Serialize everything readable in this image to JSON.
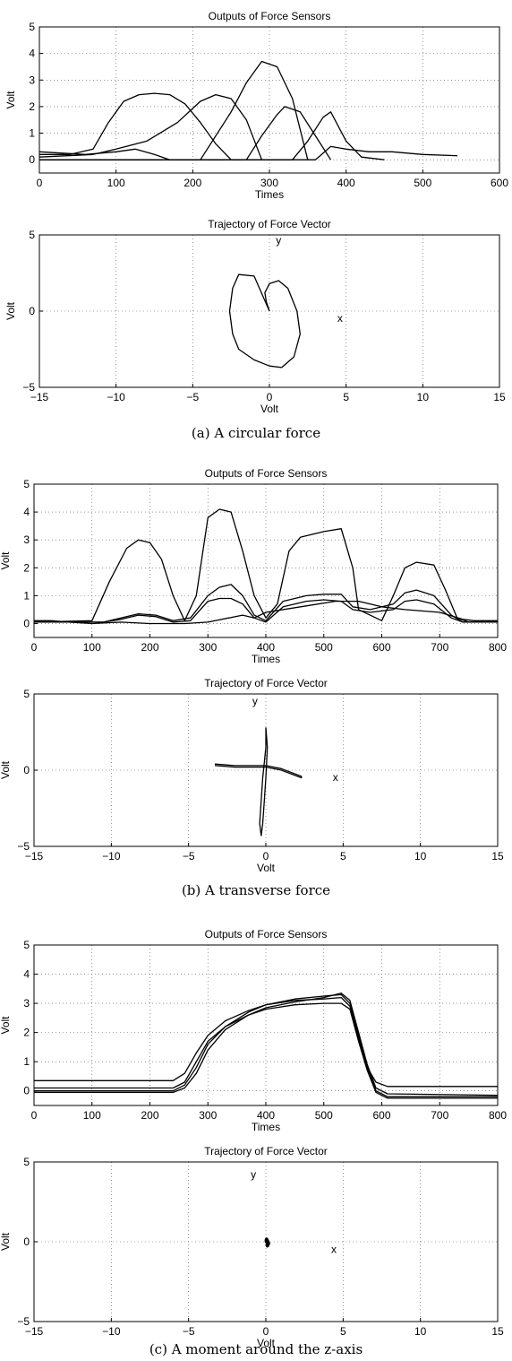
{
  "captions": [
    "(a) A circular force",
    "(b) A transverse force",
    "(c) A moment around the z-axis"
  ],
  "chart_data": [
    {
      "type": "line",
      "title": "Outputs of Force Sensors",
      "xlabel": "Times",
      "ylabel": "Volt",
      "xlim": [
        0,
        600
      ],
      "ylim": [
        -0.5,
        5
      ],
      "xticks": [
        0,
        100,
        200,
        300,
        400,
        500,
        600
      ],
      "yticks": [
        0,
        1,
        2,
        3,
        4,
        5
      ],
      "grid": true,
      "series": [
        {
          "x": [
            0,
            40,
            70,
            90,
            110,
            130,
            150,
            170,
            190,
            210,
            230,
            250
          ],
          "y": [
            0.2,
            0.2,
            0.4,
            1.4,
            2.2,
            2.45,
            2.5,
            2.45,
            2.1,
            1.4,
            0.6,
            0
          ]
        },
        {
          "x": [
            0,
            70,
            100,
            140,
            180,
            210,
            230,
            250,
            270,
            290
          ],
          "y": [
            0.1,
            0.2,
            0.4,
            0.7,
            1.4,
            2.2,
            2.45,
            2.3,
            1.5,
            0
          ]
        },
        {
          "x": [
            0,
            60,
            100,
            125,
            150,
            170,
            210,
            250,
            270,
            290,
            310,
            330,
            350
          ],
          "y": [
            0.3,
            0.2,
            0.3,
            0.4,
            0.2,
            0,
            0,
            1.8,
            2.9,
            3.7,
            3.5,
            2.3,
            0
          ]
        },
        {
          "x": [
            0,
            270,
            290,
            310,
            320,
            340,
            360,
            380
          ],
          "y": [
            0,
            0,
            0.9,
            1.7,
            2.0,
            1.8,
            0.9,
            0
          ]
        },
        {
          "x": [
            0,
            330,
            350,
            370,
            380,
            400,
            420,
            450
          ],
          "y": [
            0,
            0,
            0.7,
            1.6,
            1.8,
            0.7,
            0.1,
            0
          ]
        },
        {
          "x": [
            0,
            360,
            380,
            400,
            430,
            460,
            500,
            545
          ],
          "y": [
            0,
            0,
            0.5,
            0.4,
            0.3,
            0.3,
            0.2,
            0.15
          ]
        }
      ]
    },
    {
      "type": "line",
      "title": "Trajectory of Force Vector",
      "xlabel": "Volt",
      "ylabel": "Volt",
      "xlim": [
        -15,
        15
      ],
      "ylim": [
        -5,
        5
      ],
      "xticks": [
        -15,
        -10,
        -5,
        0,
        5,
        10,
        15
      ],
      "yticks": [
        -5,
        0,
        5
      ],
      "grid": true,
      "annotations": [
        {
          "text": "y",
          "x": 0.6,
          "y": 4.4
        },
        {
          "text": "x",
          "x": 4.6,
          "y": -0.7
        }
      ],
      "series": [
        {
          "x": [
            0,
            -1,
            -2,
            -2.4,
            -2.6,
            -2.4,
            -2,
            -1,
            0,
            0.8,
            1.6,
            2,
            1.8,
            1.2,
            0.6,
            0,
            -0.3,
            -0.2,
            0
          ],
          "y": [
            0,
            2.3,
            2.4,
            1.5,
            0,
            -1.5,
            -2.5,
            -3.2,
            -3.6,
            -3.7,
            -3,
            -1.5,
            0,
            1.5,
            2,
            1.8,
            1.2,
            0.6,
            0
          ]
        }
      ]
    },
    {
      "type": "line",
      "title": "Outputs of Force Sensors",
      "xlabel": "Times",
      "ylabel": "Volt",
      "xlim": [
        0,
        800
      ],
      "ylim": [
        -0.5,
        5
      ],
      "xticks": [
        0,
        100,
        200,
        300,
        400,
        500,
        600,
        700,
        800
      ],
      "yticks": [
        0,
        1,
        2,
        3,
        4,
        5
      ],
      "grid": true,
      "series": [
        {
          "x": [
            0,
            100,
            130,
            160,
            180,
            200,
            220,
            240,
            260,
            280,
            300,
            320,
            340,
            360,
            380,
            400,
            420,
            440,
            460,
            500,
            530,
            550,
            560,
            600,
            620,
            640,
            660,
            690,
            710,
            730,
            750,
            800
          ],
          "y": [
            0.05,
            0.1,
            1.5,
            2.7,
            3.0,
            2.9,
            2.3,
            1.0,
            0.1,
            1.0,
            3.8,
            4.1,
            4.0,
            2.6,
            1.0,
            0.2,
            0.7,
            2.6,
            3.1,
            3.3,
            3.4,
            2.0,
            0.5,
            0.1,
            1.0,
            2.0,
            2.2,
            2.1,
            1.2,
            0.2,
            0.05,
            0.05
          ]
        },
        {
          "x": [
            0,
            120,
            150,
            180,
            210,
            240,
            270,
            300,
            320,
            340,
            360,
            380,
            400,
            430,
            470,
            500,
            530,
            550,
            580,
            620,
            640,
            660,
            690,
            720,
            740,
            800
          ],
          "y": [
            0.05,
            0.05,
            0.2,
            0.35,
            0.3,
            0.1,
            0.2,
            1.0,
            1.3,
            1.4,
            1.0,
            0.3,
            0.1,
            0.8,
            1.0,
            1.05,
            1.05,
            0.6,
            0.5,
            0.7,
            1.1,
            1.2,
            1.0,
            0.3,
            0.05,
            0.05
          ]
        },
        {
          "x": [
            0,
            120,
            150,
            180,
            210,
            240,
            270,
            300,
            320,
            340,
            360,
            380,
            400,
            430,
            470,
            500,
            530,
            550,
            580,
            620,
            640,
            660,
            690,
            720,
            740,
            800
          ],
          "y": [
            0.05,
            0.05,
            0.15,
            0.3,
            0.25,
            0.05,
            0.1,
            0.8,
            0.9,
            0.9,
            0.7,
            0.2,
            0.05,
            0.6,
            0.8,
            0.85,
            0.8,
            0.5,
            0.4,
            0.5,
            0.8,
            0.85,
            0.7,
            0.2,
            0.05,
            0.05
          ]
        },
        {
          "x": [
            0,
            30,
            60,
            100,
            150,
            200,
            260,
            300,
            360,
            380,
            400,
            460,
            520,
            560,
            600,
            640,
            700,
            740,
            760,
            800
          ],
          "y": [
            0.1,
            0.1,
            0.05,
            0,
            0.05,
            0,
            0,
            0.05,
            0.3,
            0.2,
            0.4,
            0.6,
            0.8,
            0.8,
            0.6,
            0.5,
            0.4,
            0.15,
            0.1,
            0.1
          ]
        }
      ]
    },
    {
      "type": "line",
      "title": "Trajectory of Force Vector",
      "xlabel": "Volt",
      "ylabel": "Volt",
      "xlim": [
        -15,
        15
      ],
      "ylim": [
        -5,
        5
      ],
      "xticks": [
        -15,
        -10,
        -5,
        0,
        5,
        10,
        15
      ],
      "yticks": [
        -5,
        0,
        5
      ],
      "grid": true,
      "annotations": [
        {
          "text": "y",
          "x": -0.7,
          "y": 4.3
        },
        {
          "text": "x",
          "x": 4.5,
          "y": -0.7
        }
      ],
      "series": [
        {
          "x": [
            -3.3,
            -2,
            -1,
            0,
            1,
            2.3,
            2.3,
            1,
            0,
            -1,
            -2,
            -3.3
          ],
          "y": [
            0.3,
            0.2,
            0.2,
            0.2,
            0,
            -0.5,
            -0.4,
            0.1,
            0.3,
            0.3,
            0.3,
            0.4
          ]
        },
        {
          "x": [
            0,
            0,
            -0.1,
            -0.2,
            -0.3,
            -0.4,
            -0.3,
            -0.2,
            -0.1,
            0,
            0.1,
            0
          ],
          "y": [
            2.8,
            1.5,
            0.5,
            -0.5,
            -2,
            -3.5,
            -4.3,
            -3.5,
            -2,
            -0.5,
            1.5,
            2.8
          ]
        }
      ]
    },
    {
      "type": "line",
      "title": "Outputs of Force Sensors",
      "xlabel": "Times",
      "ylabel": "Volt",
      "xlim": [
        0,
        800
      ],
      "ylim": [
        -0.5,
        5
      ],
      "xticks": [
        0,
        100,
        200,
        300,
        400,
        500,
        600,
        700,
        800
      ],
      "yticks": [
        0,
        1,
        2,
        3,
        4,
        5
      ],
      "grid": true,
      "series": [
        {
          "x": [
            0,
            240,
            260,
            280,
            300,
            330,
            370,
            400,
            450,
            500,
            530,
            545,
            560,
            575,
            590,
            610,
            800
          ],
          "y": [
            0.35,
            0.35,
            0.6,
            1.3,
            1.9,
            2.4,
            2.75,
            2.95,
            3.1,
            3.15,
            3.2,
            2.9,
            1.8,
            0.8,
            0.3,
            0.15,
            0.15
          ]
        },
        {
          "x": [
            0,
            240,
            260,
            280,
            300,
            330,
            370,
            400,
            450,
            500,
            530,
            545,
            560,
            575,
            590,
            610,
            800
          ],
          "y": [
            0.1,
            0.1,
            0.3,
            1.0,
            1.7,
            2.2,
            2.6,
            2.85,
            3.05,
            3.2,
            3.35,
            3.1,
            2.0,
            0.9,
            0.1,
            -0.1,
            -0.15
          ]
        },
        {
          "x": [
            0,
            240,
            260,
            280,
            300,
            330,
            370,
            400,
            450,
            500,
            530,
            545,
            560,
            575,
            590,
            610,
            800
          ],
          "y": [
            0,
            0,
            0.2,
            0.8,
            1.6,
            2.2,
            2.7,
            2.95,
            3.15,
            3.25,
            3.3,
            3.0,
            1.9,
            0.8,
            0,
            -0.2,
            -0.2
          ]
        },
        {
          "x": [
            0,
            240,
            260,
            280,
            300,
            330,
            370,
            400,
            450,
            500,
            530,
            545,
            560,
            575,
            590,
            610,
            800
          ],
          "y": [
            -0.05,
            -0.05,
            0.1,
            0.6,
            1.4,
            2.1,
            2.6,
            2.8,
            2.95,
            3.0,
            3.0,
            2.8,
            1.7,
            0.7,
            -0.05,
            -0.25,
            -0.25
          ]
        }
      ]
    },
    {
      "type": "scatter",
      "title": "Trajectory of Force Vector",
      "xlabel": "Volt",
      "ylabel": "Volt",
      "xlim": [
        -15,
        15
      ],
      "ylim": [
        -5,
        5
      ],
      "xticks": [
        -15,
        -10,
        -5,
        0,
        5,
        10,
        15
      ],
      "yticks": [
        -5,
        0,
        5
      ],
      "grid": true,
      "annotations": [
        {
          "text": "y",
          "x": -0.8,
          "y": 4.0
        },
        {
          "text": "x",
          "x": 4.4,
          "y": -0.7
        }
      ],
      "series": [
        {
          "x": [
            0.05,
            0.1,
            0.15,
            0.1,
            0.05
          ],
          "y": [
            0.1,
            0,
            -0.1,
            -0.2,
            0.05
          ]
        }
      ]
    }
  ]
}
